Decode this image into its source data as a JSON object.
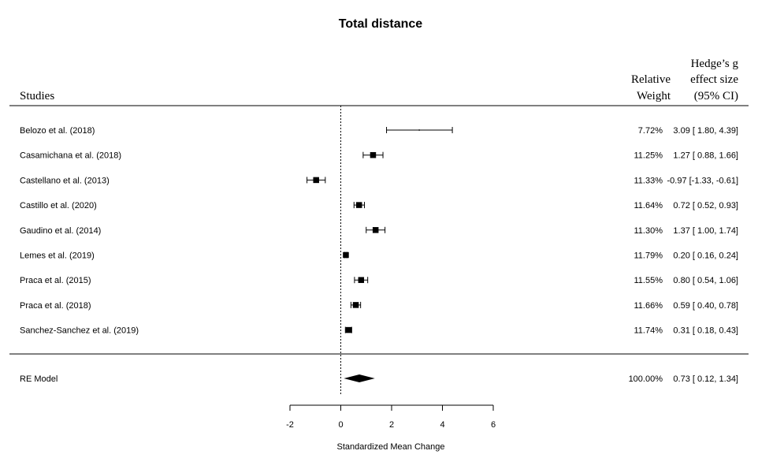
{
  "chart_data": {
    "type": "forest",
    "title": "Total distance",
    "xlabel": "Standardized Mean Change",
    "xlim": [
      -2,
      6
    ],
    "xticks": [
      -2,
      0,
      2,
      4,
      6
    ],
    "headers": {
      "studies": "Studies",
      "weight_line1": "Relative",
      "weight_line2": "Weight",
      "effect_line1": "Hedge’s g",
      "effect_line2": "effect size",
      "effect_line3": "(95% CI)"
    },
    "studies": [
      {
        "label": "Belozo et al. (2018)",
        "weight": 7.72,
        "weight_text": "7.72%",
        "estimate": 3.09,
        "lower": 1.8,
        "upper": 4.39,
        "ci_text": "3.09 [ 1.80, 4.39]"
      },
      {
        "label": "Casamichana et al. (2018)",
        "weight": 11.25,
        "weight_text": "11.25%",
        "estimate": 1.27,
        "lower": 0.88,
        "upper": 1.66,
        "ci_text": "1.27 [ 0.88, 1.66]"
      },
      {
        "label": "Castellano et al. (2013)",
        "weight": 11.33,
        "weight_text": "11.33%",
        "estimate": -0.97,
        "lower": -1.33,
        "upper": -0.61,
        "ci_text": "-0.97 [-1.33, -0.61]"
      },
      {
        "label": "Castillo et al. (2020)",
        "weight": 11.64,
        "weight_text": "11.64%",
        "estimate": 0.72,
        "lower": 0.52,
        "upper": 0.93,
        "ci_text": "0.72 [ 0.52, 0.93]"
      },
      {
        "label": "Gaudino et al. (2014)",
        "weight": 11.3,
        "weight_text": "11.30%",
        "estimate": 1.37,
        "lower": 1.0,
        "upper": 1.74,
        "ci_text": "1.37 [ 1.00, 1.74]"
      },
      {
        "label": "Lemes et al. (2019)",
        "weight": 11.79,
        "weight_text": "11.79%",
        "estimate": 0.2,
        "lower": 0.16,
        "upper": 0.24,
        "ci_text": "0.20 [ 0.16, 0.24]"
      },
      {
        "label": "Praca et al. (2015)",
        "weight": 11.55,
        "weight_text": "11.55%",
        "estimate": 0.8,
        "lower": 0.54,
        "upper": 1.06,
        "ci_text": "0.80 [ 0.54, 1.06]"
      },
      {
        "label": "Praca et al. (2018)",
        "weight": 11.66,
        "weight_text": "11.66%",
        "estimate": 0.59,
        "lower": 0.4,
        "upper": 0.78,
        "ci_text": "0.59 [ 0.40, 0.78]"
      },
      {
        "label": "Sanchez-Sanchez et al. (2019)",
        "weight": 11.74,
        "weight_text": "11.74%",
        "estimate": 0.31,
        "lower": 0.18,
        "upper": 0.43,
        "ci_text": "0.31 [ 0.18, 0.43]"
      }
    ],
    "summary": {
      "label": "RE Model",
      "weight": 100.0,
      "weight_text": "100.00%",
      "estimate": 0.73,
      "lower": 0.12,
      "upper": 1.34,
      "ci_text": "0.73 [ 0.12, 1.34]"
    },
    "reference_line": 0
  }
}
